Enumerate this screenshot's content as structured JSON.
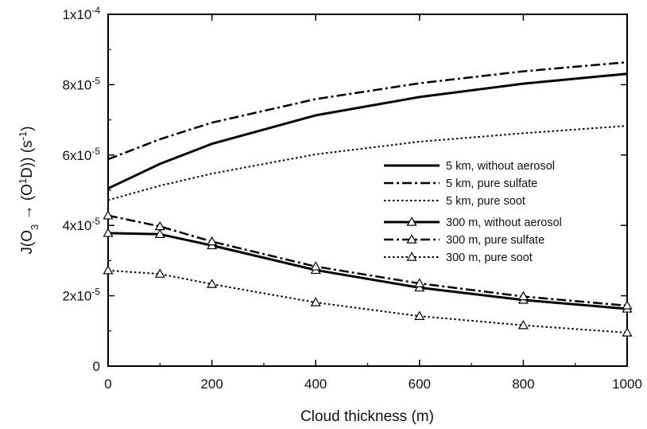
{
  "chart_data": {
    "type": "line",
    "xlabel": "Cloud thickness (m)",
    "ylabel": "J(O3 → (O1D)) (s-1)",
    "xlim": [
      0,
      1000
    ],
    "ylim": [
      0,
      0.0001
    ],
    "xticks": [
      0,
      200,
      400,
      600,
      800,
      1000
    ],
    "xtick_labels": [
      "0",
      "200",
      "400",
      "600",
      "800",
      "1000"
    ],
    "yticks": [
      0,
      2e-05,
      4e-05,
      6e-05,
      8e-05,
      0.0001
    ],
    "ytick_labels": [
      {
        "mantissa": "0",
        "exponent": ""
      },
      {
        "mantissa": "2x10",
        "exponent": "-5"
      },
      {
        "mantissa": "4x10",
        "exponent": "-5"
      },
      {
        "mantissa": "6x10",
        "exponent": "-5"
      },
      {
        "mantissa": "8x10",
        "exponent": "-5"
      },
      {
        "mantissa": "1x10",
        "exponent": "-4"
      }
    ],
    "grid": false,
    "legend_position": "right-center",
    "series": [
      {
        "name": "5 km, without aerosol",
        "style": "solid",
        "marker": "none",
        "color": "#000000",
        "x": [
          0,
          100,
          200,
          400,
          600,
          800,
          1000
        ],
        "y": [
          5.05e-05,
          5.75e-05,
          6.32e-05,
          7.13e-05,
          7.65e-05,
          8.03e-05,
          8.31e-05
        ]
      },
      {
        "name": "5 km, pure sulfate",
        "style": "dashdot",
        "marker": "none",
        "color": "#000000",
        "x": [
          0,
          100,
          200,
          400,
          600,
          800,
          1000
        ],
        "y": [
          5.88e-05,
          6.45e-05,
          6.92e-05,
          7.59e-05,
          8.04e-05,
          8.38e-05,
          8.64e-05
        ]
      },
      {
        "name": "5 km, pure soot",
        "style": "dotted",
        "marker": "none",
        "color": "#000000",
        "x": [
          0,
          100,
          200,
          400,
          600,
          800,
          1000
        ],
        "y": [
          4.72e-05,
          5.13e-05,
          5.47e-05,
          6.02e-05,
          6.38e-05,
          6.62e-05,
          6.83e-05
        ]
      },
      {
        "name": "300 m, without aerosol",
        "style": "solid",
        "marker": "triangle",
        "color": "#000000",
        "x": [
          0,
          100,
          200,
          400,
          600,
          800,
          1000
        ],
        "y": [
          3.78e-05,
          3.75e-05,
          3.43e-05,
          2.73e-05,
          2.23e-05,
          1.88e-05,
          1.63e-05
        ]
      },
      {
        "name": "300 m, pure sulfate",
        "style": "dashdot",
        "marker": "triangle",
        "color": "#000000",
        "x": [
          0,
          100,
          200,
          400,
          600,
          800,
          1000
        ],
        "y": [
          4.28e-05,
          3.97e-05,
          3.54e-05,
          2.83e-05,
          2.35e-05,
          1.98e-05,
          1.72e-05
        ]
      },
      {
        "name": "300 m, pure soot",
        "style": "dotted",
        "marker": "triangle",
        "color": "#000000",
        "x": [
          0,
          100,
          200,
          400,
          600,
          800,
          1000
        ],
        "y": [
          2.72e-05,
          2.62e-05,
          2.33e-05,
          1.81e-05,
          1.42e-05,
          1.16e-05,
          9.5e-06
        ]
      }
    ]
  }
}
